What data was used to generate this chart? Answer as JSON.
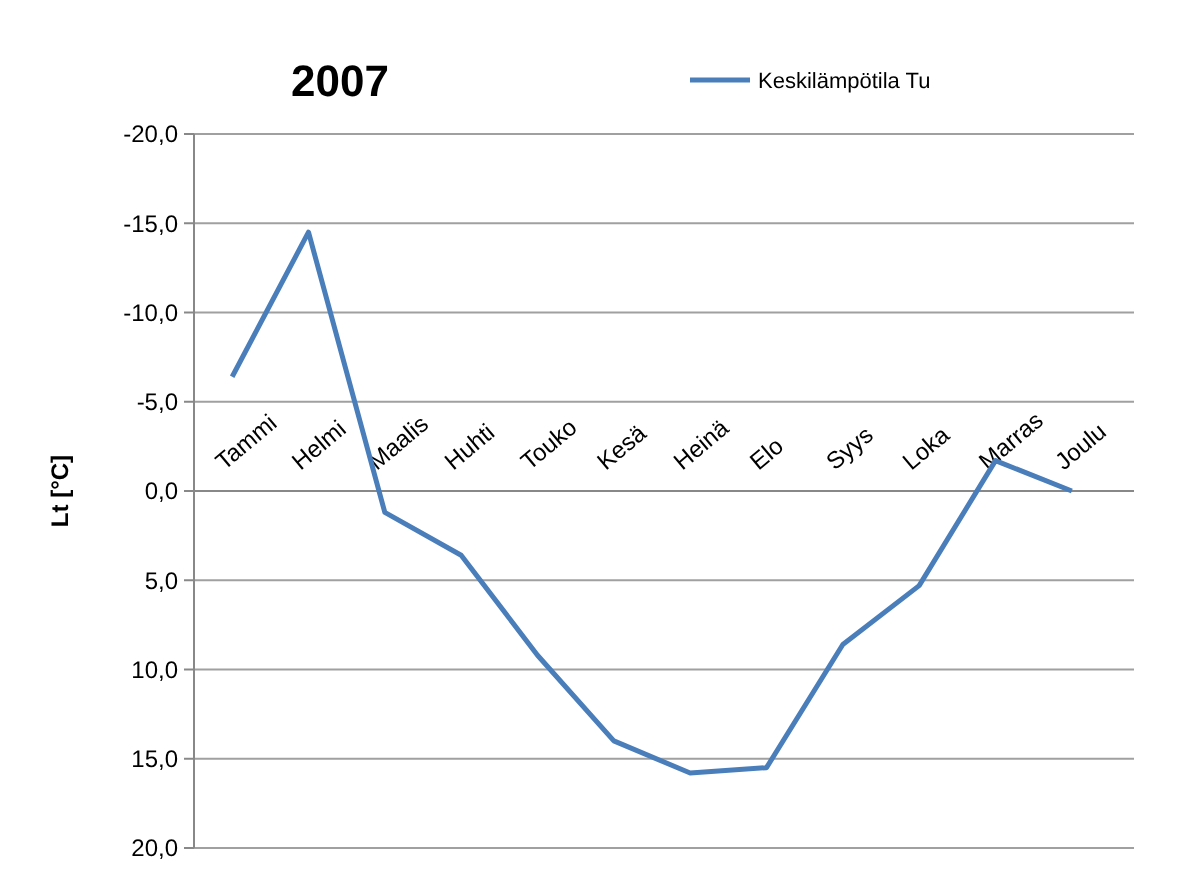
{
  "chart_data": {
    "type": "line",
    "title": "2007",
    "ylabel": "Lt  [°C]",
    "categories": [
      "Tammi",
      "Helmi",
      "Maalis",
      "Huhti",
      "Touko",
      "Kesä",
      "Heinä",
      "Elo",
      "Syys",
      "Loka",
      "Marras",
      "Joulu"
    ],
    "series": [
      {
        "name": "Keskilämpötila Tu",
        "color": "#4a7ebb",
        "values": [
          -6.4,
          -14.5,
          1.2,
          3.6,
          9.2,
          14.0,
          15.8,
          15.5,
          8.6,
          5.3,
          -1.7,
          0.0
        ]
      }
    ],
    "ylim": [
      20,
      -20
    ],
    "yticks": [
      {
        "value": -20,
        "label": "-20,0"
      },
      {
        "value": -15,
        "label": "-15,0"
      },
      {
        "value": -10,
        "label": "-10,0"
      },
      {
        "value": -5,
        "label": "-5,0"
      },
      {
        "value": 0,
        "label": "0,0"
      },
      {
        "value": 5,
        "label": "5,0"
      },
      {
        "value": 10,
        "label": "10,0"
      },
      {
        "value": 15,
        "label": "15,0"
      },
      {
        "value": 20,
        "label": "20,0"
      }
    ],
    "grid": "y",
    "legend": "top right",
    "marker": "none",
    "line_style": "solid"
  }
}
